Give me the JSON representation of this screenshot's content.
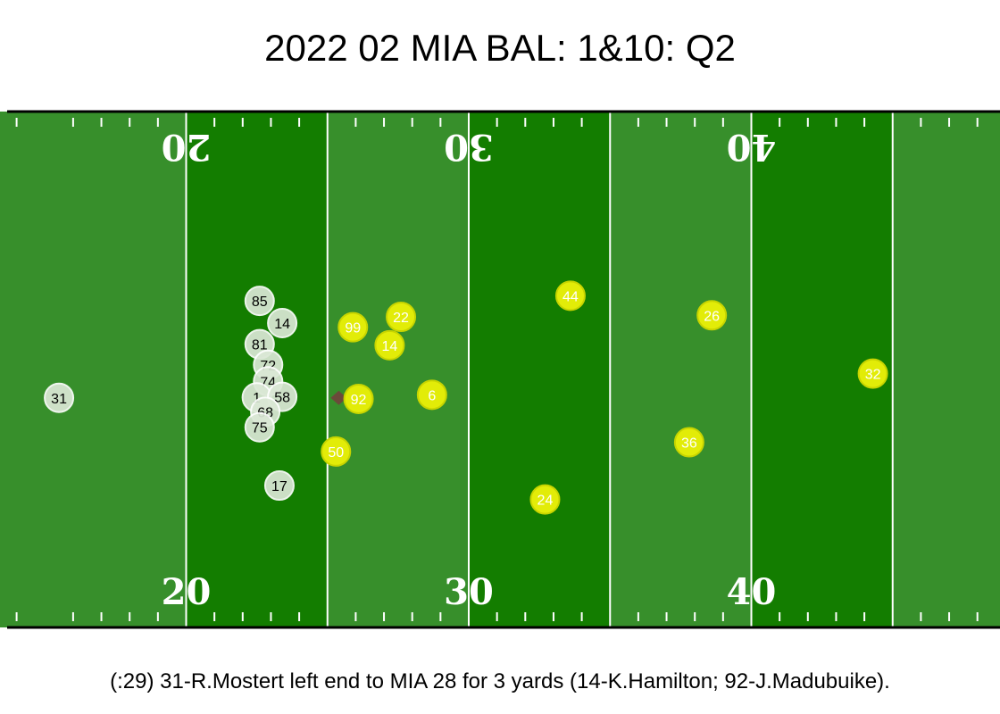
{
  "title": "2022 02 MIA BAL: 1&10: Q2",
  "caption": "(:29) 31-R.Mostert left end to MIA 28 for 3 yards (14-K.Hamilton; 92-J.Madubuike).",
  "field": {
    "yard_range": [
      7.75,
      51.6
    ],
    "yard_numbers": [
      {
        "label": "20",
        "yard": 20
      },
      {
        "label": "30",
        "yard": 30
      },
      {
        "label": "40",
        "yard": 40
      }
    ],
    "top_yard_numbers": [
      {
        "label": "20",
        "yard": 20
      },
      {
        "label": "30",
        "yard": 30
      },
      {
        "label": "40",
        "yard": 40
      }
    ],
    "colors": {
      "dark_stripe": "#137d00",
      "light_stripe": "#378f2b",
      "lines": "#ffffff",
      "border": "#000000"
    }
  },
  "ball": {
    "yard": 25.4,
    "depth": 0.555,
    "color": "#6b4a3a"
  },
  "offense": {
    "team": "MIA",
    "fill": "#dbe8d6",
    "stroke": "#ffffff",
    "text_color": "#000000",
    "players": [
      {
        "number": "85",
        "yard": 22.6,
        "depth": 0.367
      },
      {
        "number": "14",
        "yard": 23.4,
        "depth": 0.41
      },
      {
        "number": "81",
        "yard": 22.6,
        "depth": 0.451
      },
      {
        "number": "72",
        "yard": 22.9,
        "depth": 0.491
      },
      {
        "number": "74",
        "yard": 22.9,
        "depth": 0.523
      },
      {
        "number": "1",
        "yard": 22.5,
        "depth": 0.554
      },
      {
        "number": "58",
        "yard": 23.4,
        "depth": 0.553
      },
      {
        "number": "68",
        "yard": 22.8,
        "depth": 0.582
      },
      {
        "number": "75",
        "yard": 22.6,
        "depth": 0.612
      },
      {
        "number": "17",
        "yard": 23.3,
        "depth": 0.725
      },
      {
        "number": "31",
        "yard": 15.5,
        "depth": 0.555
      }
    ]
  },
  "defense": {
    "team": "BAL",
    "fill": "#e2ec08",
    "stroke": "#c8d400",
    "text_color": "#ffffff",
    "players": [
      {
        "number": "99",
        "yard": 25.9,
        "depth": 0.418
      },
      {
        "number": "22",
        "yard": 27.6,
        "depth": 0.398
      },
      {
        "number": "14",
        "yard": 27.2,
        "depth": 0.453
      },
      {
        "number": "44",
        "yard": 33.6,
        "depth": 0.357
      },
      {
        "number": "26",
        "yard": 38.6,
        "depth": 0.395
      },
      {
        "number": "92",
        "yard": 26.1,
        "depth": 0.557
      },
      {
        "number": "6",
        "yard": 28.7,
        "depth": 0.549
      },
      {
        "number": "32",
        "yard": 44.3,
        "depth": 0.508
      },
      {
        "number": "50",
        "yard": 25.3,
        "depth": 0.659
      },
      {
        "number": "36",
        "yard": 37.8,
        "depth": 0.641
      },
      {
        "number": "24",
        "yard": 32.7,
        "depth": 0.752
      }
    ]
  }
}
